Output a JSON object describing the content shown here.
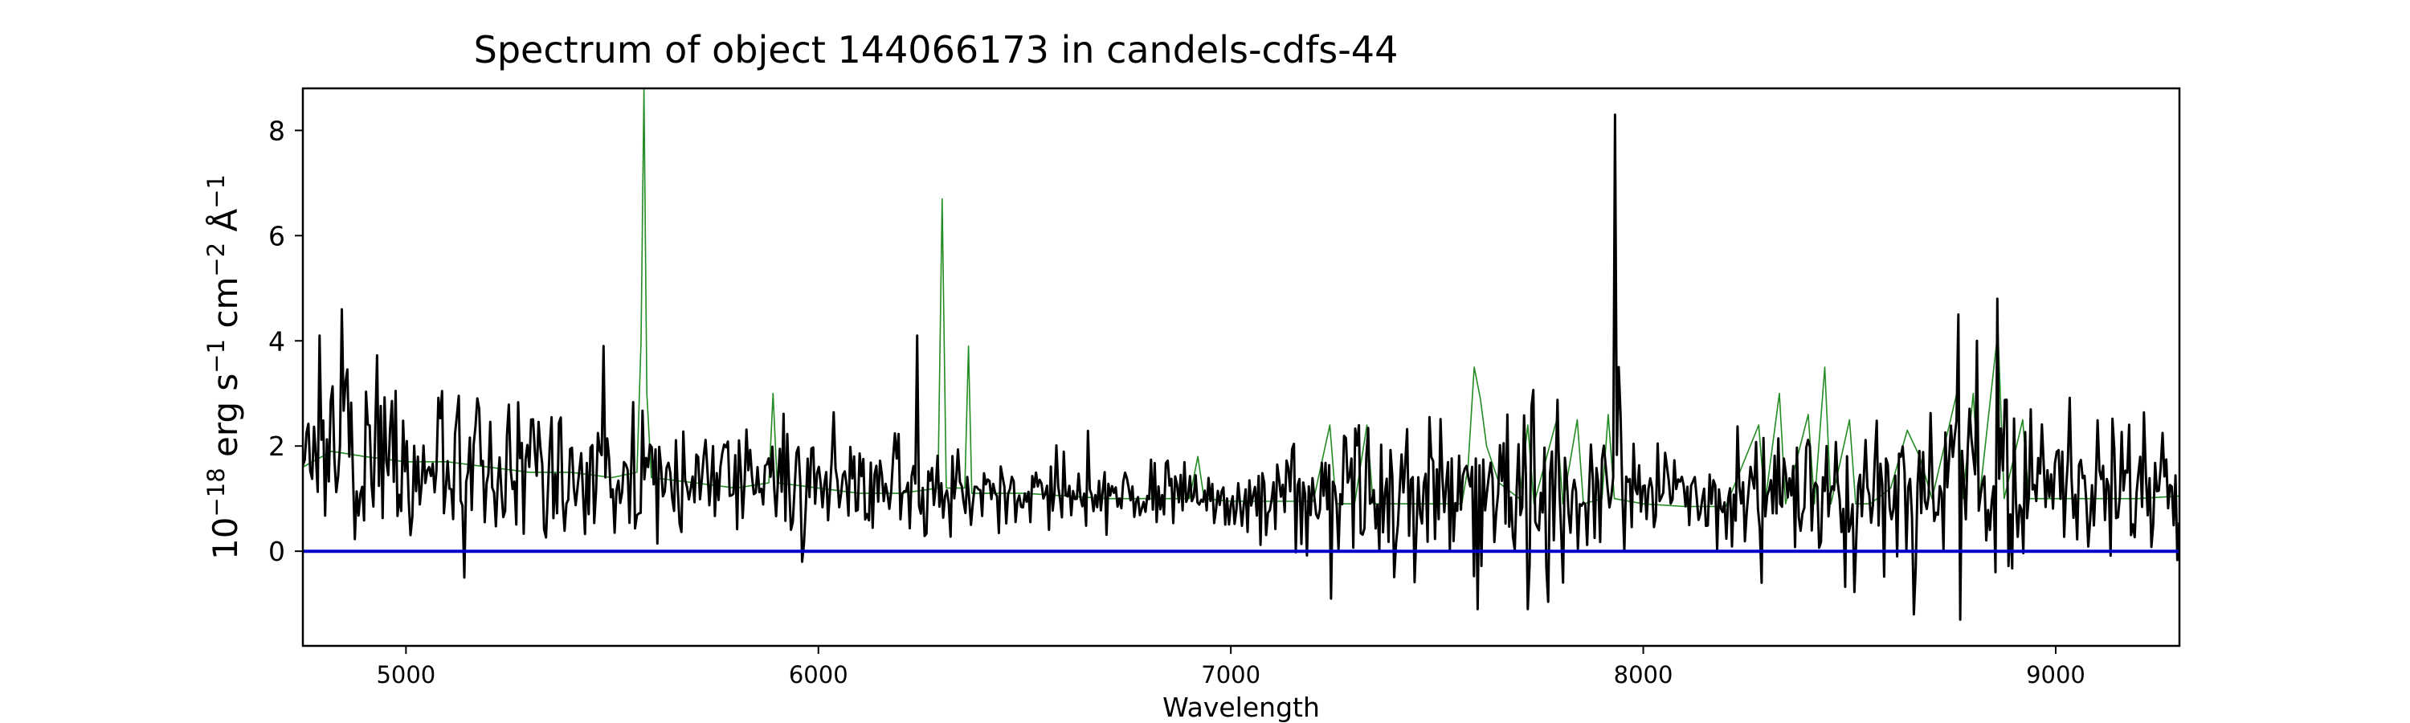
{
  "chart_data": {
    "type": "line",
    "title": "Spectrum of object 144066173 in candels-cdfs-44",
    "xlabel": "Wavelength",
    "ylabel_parts": [
      "10",
      "−18",
      " erg s",
      "−1",
      " cm",
      "−2",
      " Å",
      "−1"
    ],
    "xlim": [
      4750,
      9300
    ],
    "ylim": [
      -1.8,
      8.8
    ],
    "xticks": [
      5000,
      6000,
      7000,
      8000,
      9000
    ],
    "xtick_labels": [
      "5000",
      "6000",
      "7000",
      "8000",
      "9000"
    ],
    "yticks": [
      0,
      2,
      4,
      6,
      8
    ],
    "ytick_labels": [
      "0",
      "2",
      "4",
      "6",
      "8"
    ],
    "grid": false,
    "series": [
      {
        "color": "#228b22",
        "points": [
          [
            4750,
            1.6
          ],
          [
            4820,
            1.9
          ],
          [
            4900,
            1.8
          ],
          [
            5000,
            1.7
          ],
          [
            5100,
            1.7
          ],
          [
            5200,
            1.6
          ],
          [
            5300,
            1.5
          ],
          [
            5400,
            1.5
          ],
          [
            5500,
            1.4
          ],
          [
            5560,
            1.5
          ],
          [
            5570,
            4.0
          ],
          [
            5577,
            8.8
          ],
          [
            5584,
            3.0
          ],
          [
            5595,
            1.4
          ],
          [
            5700,
            1.3
          ],
          [
            5800,
            1.2
          ],
          [
            5880,
            1.3
          ],
          [
            5890,
            3.0
          ],
          [
            5900,
            1.3
          ],
          [
            6000,
            1.2
          ],
          [
            6100,
            1.1
          ],
          [
            6200,
            1.1
          ],
          [
            6290,
            1.2
          ],
          [
            6300,
            6.7
          ],
          [
            6310,
            1.2
          ],
          [
            6355,
            1.2
          ],
          [
            6364,
            3.9
          ],
          [
            6372,
            1.1
          ],
          [
            6500,
            1.1
          ],
          [
            6700,
            1.0
          ],
          [
            6850,
            1.0
          ],
          [
            6900,
            1.0
          ],
          [
            6920,
            1.8
          ],
          [
            6935,
            1.0
          ],
          [
            7000,
            0.95
          ],
          [
            7200,
            0.95
          ],
          [
            7240,
            2.4
          ],
          [
            7255,
            0.9
          ],
          [
            7300,
            0.9
          ],
          [
            7330,
            2.4
          ],
          [
            7345,
            0.9
          ],
          [
            7400,
            0.9
          ],
          [
            7520,
            0.9
          ],
          [
            7560,
            0.9
          ],
          [
            7575,
            1.6
          ],
          [
            7590,
            3.5
          ],
          [
            7605,
            2.9
          ],
          [
            7620,
            2.0
          ],
          [
            7650,
            1.3
          ],
          [
            7700,
            1.0
          ],
          [
            7720,
            2.4
          ],
          [
            7735,
            0.9
          ],
          [
            7790,
            2.5
          ],
          [
            7805,
            0.9
          ],
          [
            7840,
            2.5
          ],
          [
            7855,
            0.9
          ],
          [
            7900,
            1.0
          ],
          [
            7915,
            2.6
          ],
          [
            7930,
            1.0
          ],
          [
            8000,
            0.9
          ],
          [
            8100,
            0.85
          ],
          [
            8200,
            0.85
          ],
          [
            8280,
            2.4
          ],
          [
            8295,
            0.9
          ],
          [
            8330,
            3.0
          ],
          [
            8345,
            0.9
          ],
          [
            8400,
            2.6
          ],
          [
            8415,
            0.9
          ],
          [
            8440,
            3.5
          ],
          [
            8455,
            0.9
          ],
          [
            8500,
            2.5
          ],
          [
            8515,
            0.9
          ],
          [
            8550,
            0.9
          ],
          [
            8600,
            1.2
          ],
          [
            8640,
            2.3
          ],
          [
            8670,
            1.8
          ],
          [
            8700,
            1.0
          ],
          [
            8760,
            3.0
          ],
          [
            8775,
            1.0
          ],
          [
            8800,
            3.0
          ],
          [
            8815,
            1.0
          ],
          [
            8860,
            4.2
          ],
          [
            8875,
            1.0
          ],
          [
            8920,
            2.5
          ],
          [
            8935,
            1.0
          ],
          [
            9000,
            1.0
          ],
          [
            9100,
            1.0
          ],
          [
            9200,
            1.0
          ],
          [
            9300,
            1.05
          ]
        ]
      },
      {
        "color": "#000000",
        "width": 3,
        "generated": true,
        "seed": 144066173,
        "baseline": [
          [
            4750,
            2.0
          ],
          [
            5200,
            1.6
          ],
          [
            5500,
            1.4
          ],
          [
            6000,
            1.3
          ],
          [
            6400,
            1.2
          ],
          [
            6800,
            1.1
          ],
          [
            7000,
            1.0
          ],
          [
            7400,
            1.0
          ],
          [
            7600,
            1.05
          ],
          [
            8000,
            1.05
          ],
          [
            8300,
            1.0
          ],
          [
            8600,
            1.2
          ],
          [
            9000,
            1.3
          ],
          [
            9300,
            1.3
          ]
        ],
        "noise": [
          [
            4750,
            1.0
          ],
          [
            5200,
            0.85
          ],
          [
            5600,
            0.7
          ],
          [
            6000,
            0.6
          ],
          [
            6600,
            0.45
          ],
          [
            7000,
            0.4
          ],
          [
            7200,
            0.8
          ],
          [
            7600,
            1.0
          ],
          [
            7900,
            0.9
          ],
          [
            8100,
            0.55
          ],
          [
            8300,
            0.8
          ],
          [
            8600,
            0.85
          ],
          [
            8800,
            1.0
          ],
          [
            9300,
            0.7
          ]
        ],
        "spikes": [
          [
            4845,
            4.6
          ],
          [
            4790,
            4.1
          ],
          [
            5480,
            3.9
          ],
          [
            6240,
            4.1
          ],
          [
            7930,
            8.3
          ],
          [
            7940,
            3.5
          ],
          [
            8765,
            4.5
          ],
          [
            8860,
            4.8
          ],
          [
            8810,
            4.0
          ],
          [
            5140,
            -0.5
          ],
          [
            5960,
            -0.2
          ],
          [
            7245,
            -0.9
          ],
          [
            7600,
            -1.1
          ],
          [
            7720,
            -1.1
          ],
          [
            8655,
            -1.2
          ],
          [
            8770,
            -1.3
          ],
          [
            8285,
            -0.6
          ],
          [
            8855,
            -0.4
          ]
        ]
      },
      {
        "color": "#0000cd",
        "width": 4,
        "points": [
          [
            4750,
            0
          ],
          [
            9300,
            0
          ]
        ]
      }
    ]
  }
}
